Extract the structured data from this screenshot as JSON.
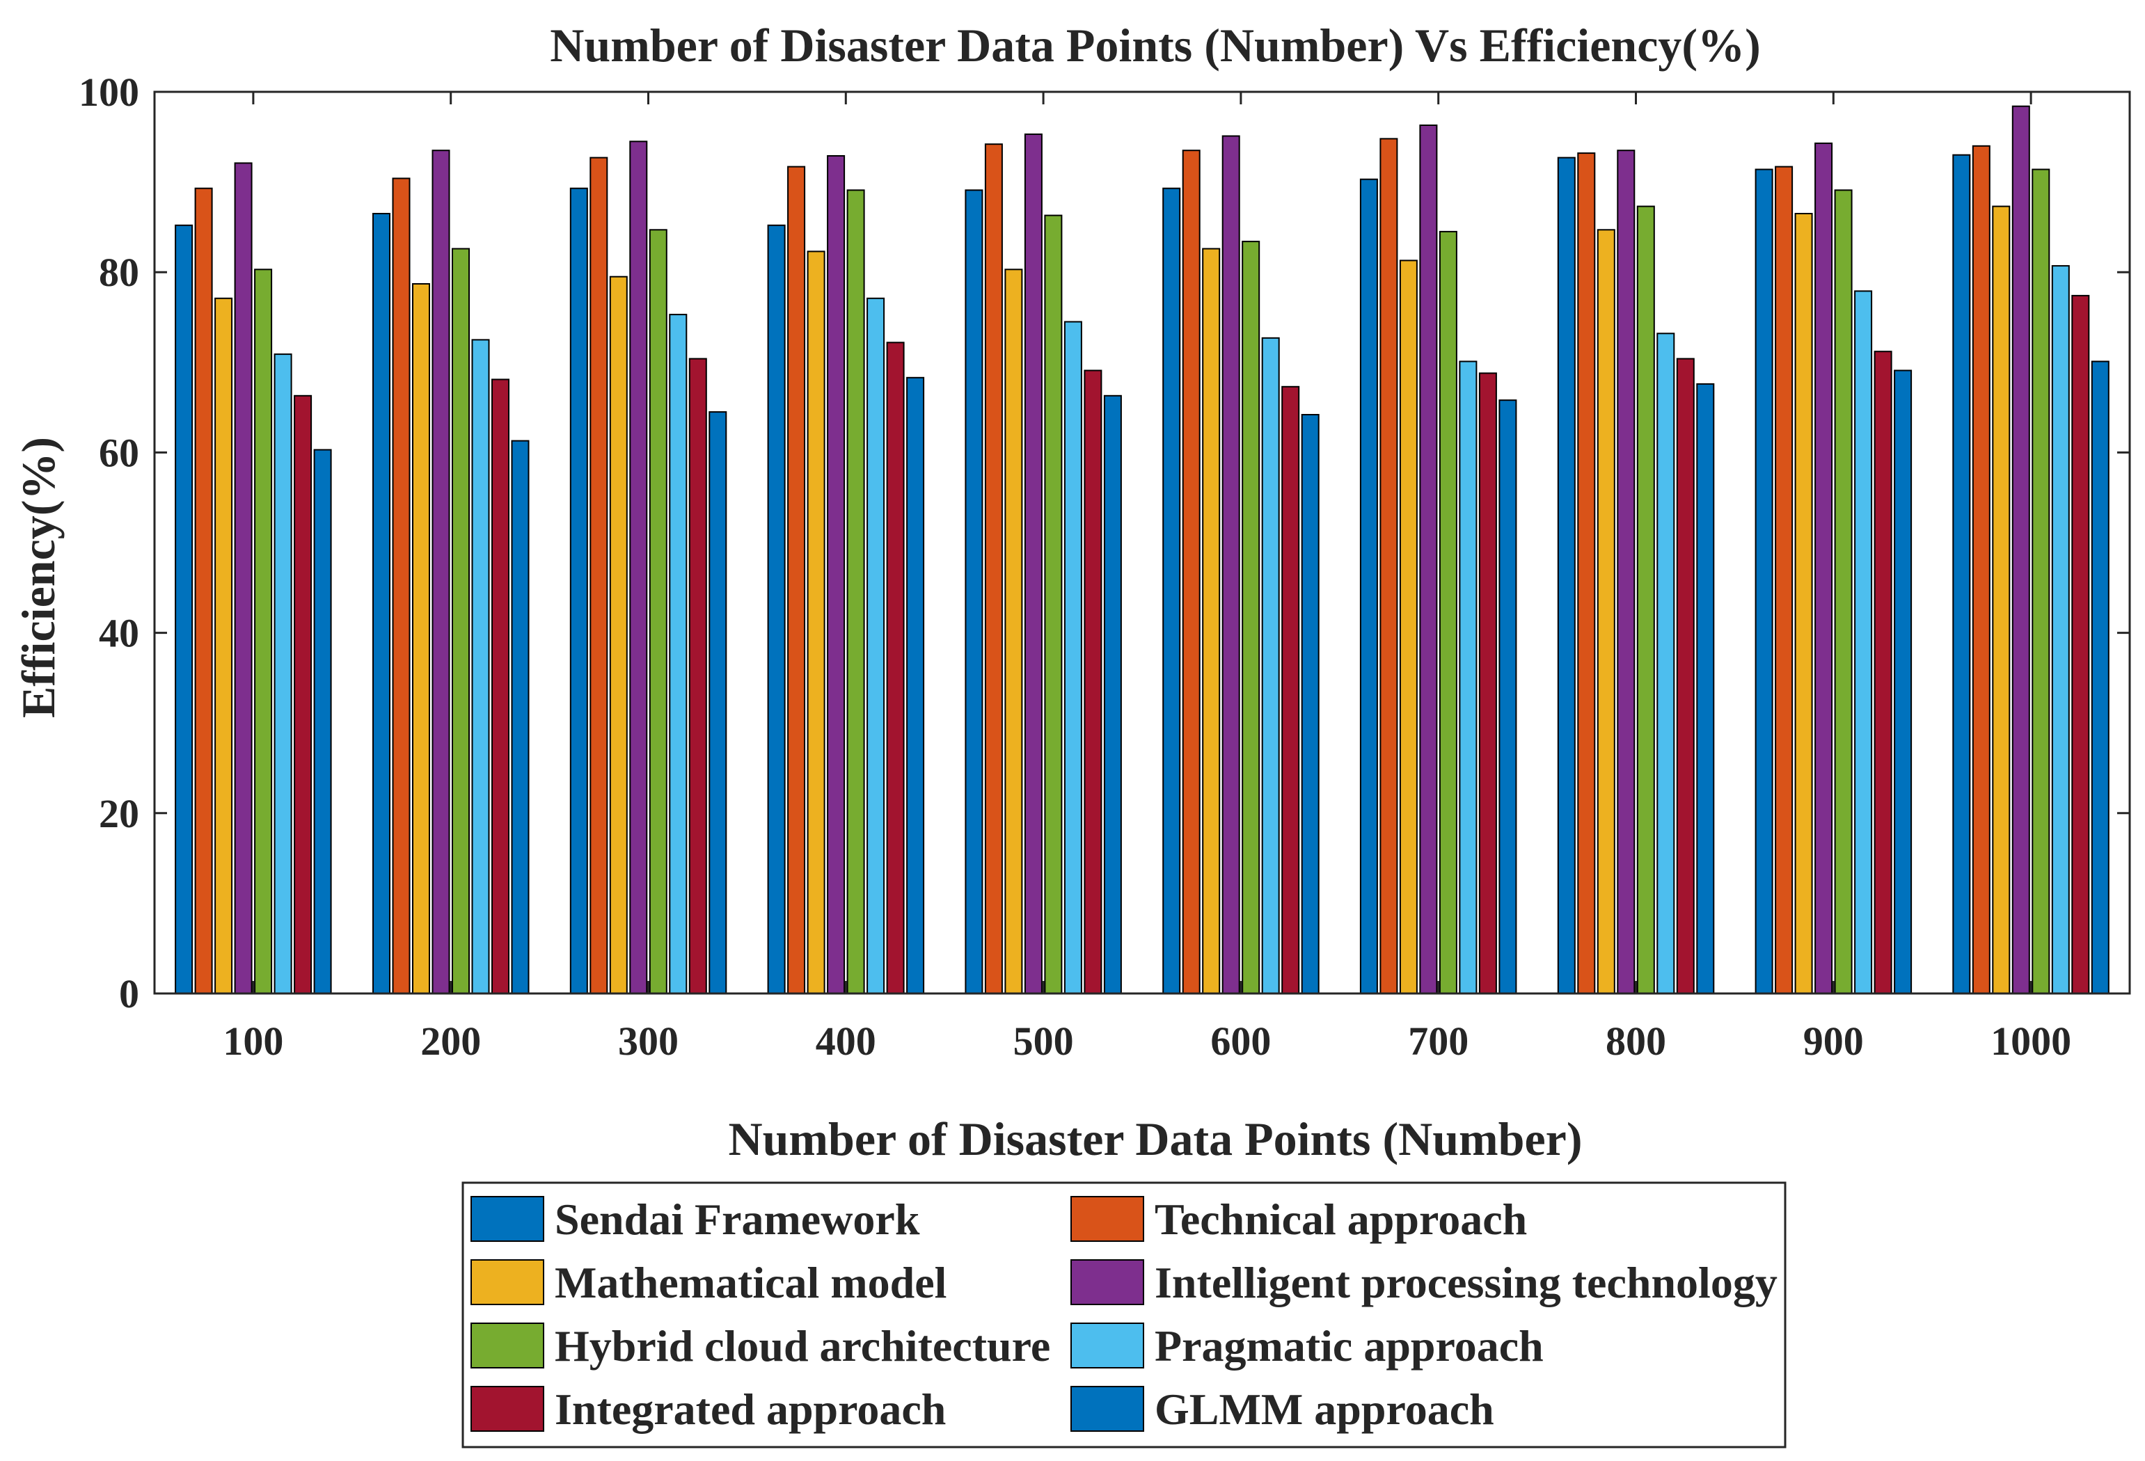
{
  "chart_data": {
    "type": "bar",
    "title": "Number of Disaster Data Points (Number) Vs Efficiency(%)",
    "xlabel": "Number of Disaster Data Points (Number)",
    "ylabel": "Efficiency(%)",
    "ylim": [
      0,
      100
    ],
    "yticks": [
      0,
      20,
      40,
      60,
      80,
      100
    ],
    "grid": false,
    "legend_position": "bottom-outside",
    "categories": [
      "100",
      "200",
      "300",
      "400",
      "500",
      "600",
      "700",
      "800",
      "900",
      "1000"
    ],
    "series": [
      {
        "name": "Sendai Framework",
        "color": "#0072BD",
        "values": [
          85.2,
          86.5,
          89.3,
          85.2,
          89.1,
          89.3,
          90.3,
          92.7,
          91.4,
          93.0
        ]
      },
      {
        "name": "Technical approach",
        "color": "#D95319",
        "values": [
          89.3,
          90.4,
          92.7,
          91.7,
          94.2,
          93.5,
          94.8,
          93.2,
          91.7,
          94.0
        ]
      },
      {
        "name": "Mathematical model",
        "color": "#EDB120",
        "values": [
          77.1,
          78.7,
          79.5,
          82.3,
          80.3,
          82.6,
          81.3,
          84.7,
          86.5,
          87.3
        ]
      },
      {
        "name": "Intelligent processing technology",
        "color": "#7E2F8E",
        "values": [
          92.1,
          93.5,
          94.5,
          92.9,
          95.3,
          95.1,
          96.3,
          93.5,
          94.3,
          98.4
        ]
      },
      {
        "name": "Hybrid cloud architecture",
        "color": "#77AC30",
        "values": [
          80.3,
          82.6,
          84.7,
          89.1,
          86.3,
          83.4,
          84.5,
          87.3,
          89.1,
          91.4
        ]
      },
      {
        "name": "Pragmatic approach",
        "color": "#4DBEEE",
        "values": [
          70.9,
          72.5,
          75.3,
          77.1,
          74.5,
          72.7,
          70.1,
          73.2,
          77.9,
          80.7
        ]
      },
      {
        "name": "Integrated approach",
        "color": "#A2142F",
        "values": [
          66.3,
          68.1,
          70.4,
          72.2,
          69.1,
          67.3,
          68.8,
          70.4,
          71.2,
          77.4
        ]
      },
      {
        "name": "GLMM approach",
        "color": "#0072BD",
        "values": [
          60.3,
          61.3,
          64.5,
          68.3,
          66.3,
          64.2,
          65.8,
          67.6,
          69.1,
          70.1
        ]
      }
    ]
  }
}
